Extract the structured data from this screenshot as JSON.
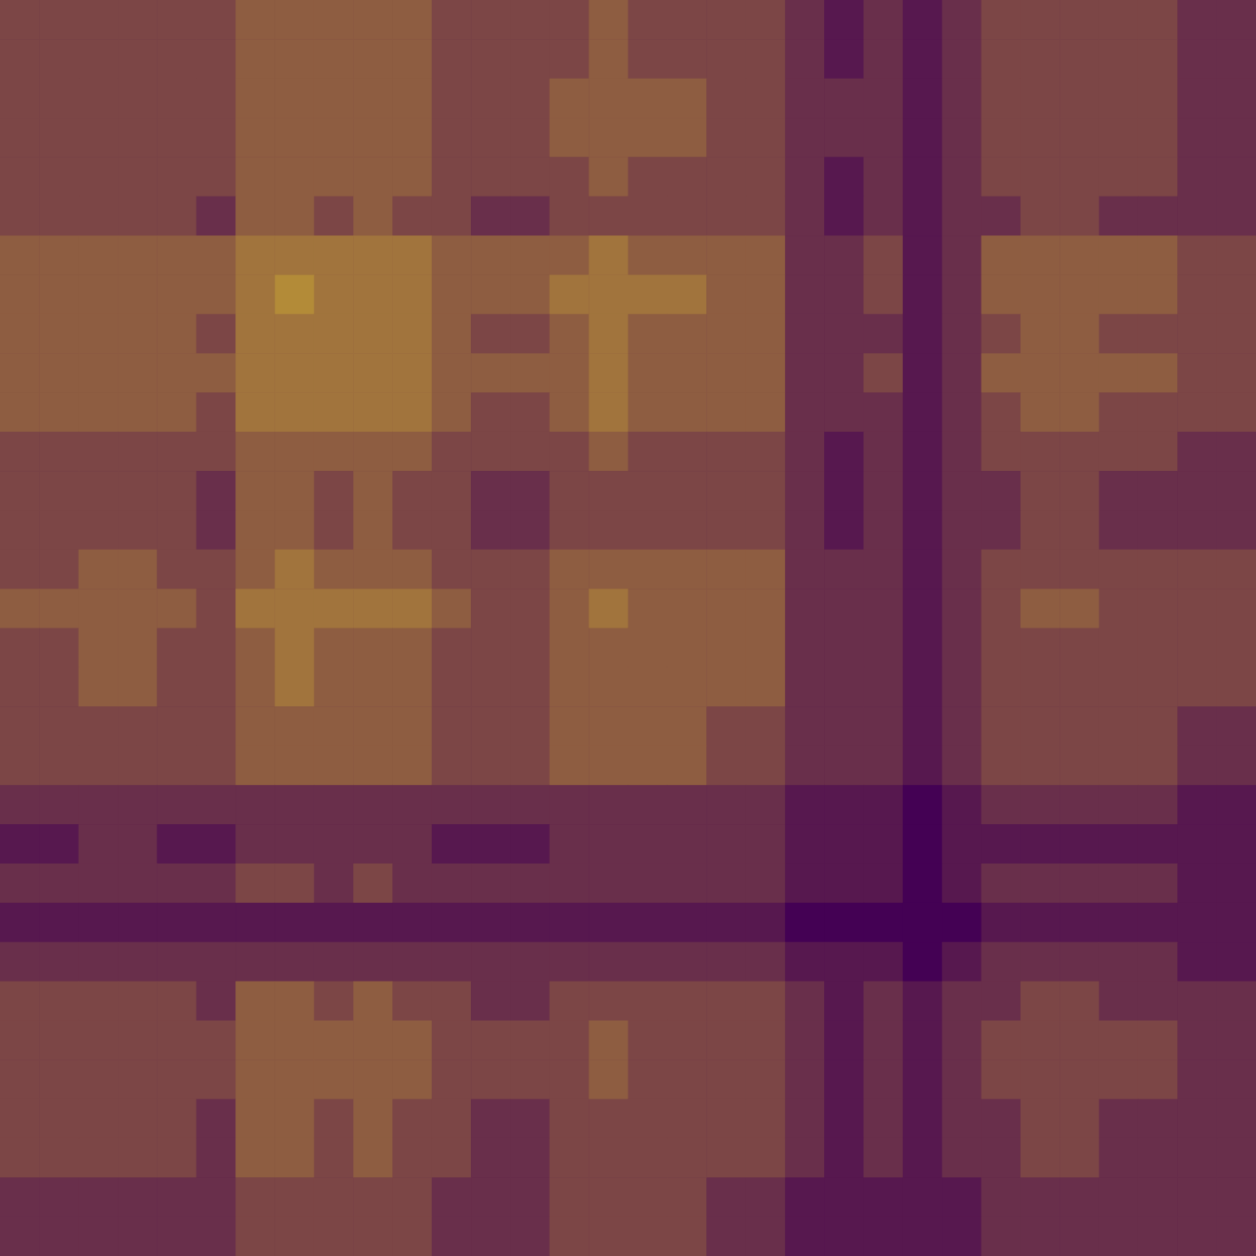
{
  "chart_data": {
    "type": "heatmap",
    "tick_labels": false,
    "zlim": [
      0,
      1
    ],
    "colors": [
      "#440154",
      "#fde725"
    ],
    "z": [
      [
        0.3,
        0.3,
        0.3,
        0.3,
        0.3,
        0.3,
        0.4,
        0.4,
        0.4,
        0.4,
        0.4,
        0.3,
        0.3,
        0.3,
        0.3,
        0.4,
        0.3,
        0.3,
        0.3,
        0.3,
        0.2,
        0.1,
        0.2,
        0.1,
        0.2,
        0.3,
        0.3,
        0.3,
        0.3,
        0.3,
        0.2,
        0.2
      ],
      [
        0.3,
        0.3,
        0.3,
        0.3,
        0.3,
        0.3,
        0.4,
        0.4,
        0.4,
        0.4,
        0.4,
        0.3,
        0.3,
        0.3,
        0.3,
        0.4,
        0.3,
        0.3,
        0.3,
        0.3,
        0.2,
        0.1,
        0.2,
        0.1,
        0.2,
        0.3,
        0.3,
        0.3,
        0.3,
        0.3,
        0.2,
        0.2
      ],
      [
        0.3,
        0.3,
        0.3,
        0.3,
        0.3,
        0.3,
        0.4,
        0.4,
        0.4,
        0.4,
        0.4,
        0.3,
        0.3,
        0.3,
        0.4,
        0.4,
        0.4,
        0.4,
        0.3,
        0.3,
        0.2,
        0.2,
        0.2,
        0.1,
        0.2,
        0.3,
        0.3,
        0.3,
        0.3,
        0.3,
        0.2,
        0.2
      ],
      [
        0.3,
        0.3,
        0.3,
        0.3,
        0.3,
        0.3,
        0.4,
        0.4,
        0.4,
        0.4,
        0.4,
        0.3,
        0.3,
        0.3,
        0.4,
        0.4,
        0.4,
        0.4,
        0.3,
        0.3,
        0.2,
        0.2,
        0.2,
        0.1,
        0.2,
        0.3,
        0.3,
        0.3,
        0.3,
        0.3,
        0.2,
        0.2
      ],
      [
        0.3,
        0.3,
        0.3,
        0.3,
        0.3,
        0.3,
        0.4,
        0.4,
        0.4,
        0.4,
        0.4,
        0.3,
        0.3,
        0.3,
        0.3,
        0.4,
        0.3,
        0.3,
        0.3,
        0.3,
        0.2,
        0.1,
        0.2,
        0.1,
        0.2,
        0.3,
        0.3,
        0.3,
        0.3,
        0.3,
        0.2,
        0.2
      ],
      [
        0.3,
        0.3,
        0.3,
        0.3,
        0.3,
        0.2,
        0.4,
        0.4,
        0.3,
        0.4,
        0.3,
        0.3,
        0.2,
        0.2,
        0.3,
        0.3,
        0.3,
        0.3,
        0.3,
        0.3,
        0.2,
        0.1,
        0.2,
        0.1,
        0.2,
        0.2,
        0.3,
        0.3,
        0.2,
        0.2,
        0.2,
        0.2
      ],
      [
        0.4,
        0.4,
        0.4,
        0.4,
        0.4,
        0.4,
        0.5,
        0.5,
        0.5,
        0.5,
        0.5,
        0.4,
        0.4,
        0.4,
        0.4,
        0.5,
        0.4,
        0.4,
        0.4,
        0.4,
        0.2,
        0.2,
        0.3,
        0.1,
        0.2,
        0.4,
        0.4,
        0.4,
        0.4,
        0.4,
        0.3,
        0.3
      ],
      [
        0.4,
        0.4,
        0.4,
        0.4,
        0.4,
        0.4,
        0.5,
        0.6,
        0.5,
        0.5,
        0.5,
        0.4,
        0.4,
        0.4,
        0.5,
        0.5,
        0.5,
        0.5,
        0.4,
        0.4,
        0.2,
        0.2,
        0.3,
        0.1,
        0.2,
        0.4,
        0.4,
        0.4,
        0.4,
        0.4,
        0.3,
        0.3
      ],
      [
        0.4,
        0.4,
        0.4,
        0.4,
        0.4,
        0.3,
        0.5,
        0.5,
        0.5,
        0.5,
        0.5,
        0.4,
        0.3,
        0.3,
        0.4,
        0.5,
        0.4,
        0.4,
        0.4,
        0.4,
        0.2,
        0.2,
        0.2,
        0.1,
        0.2,
        0.3,
        0.4,
        0.4,
        0.3,
        0.3,
        0.3,
        0.3
      ],
      [
        0.4,
        0.4,
        0.4,
        0.4,
        0.4,
        0.4,
        0.5,
        0.5,
        0.5,
        0.5,
        0.5,
        0.4,
        0.4,
        0.4,
        0.4,
        0.5,
        0.4,
        0.4,
        0.4,
        0.4,
        0.2,
        0.2,
        0.3,
        0.1,
        0.2,
        0.4,
        0.4,
        0.4,
        0.4,
        0.4,
        0.3,
        0.3
      ],
      [
        0.4,
        0.4,
        0.4,
        0.4,
        0.4,
        0.3,
        0.5,
        0.5,
        0.5,
        0.5,
        0.5,
        0.4,
        0.3,
        0.3,
        0.4,
        0.5,
        0.4,
        0.4,
        0.4,
        0.4,
        0.2,
        0.2,
        0.2,
        0.1,
        0.2,
        0.3,
        0.4,
        0.4,
        0.3,
        0.3,
        0.3,
        0.3
      ],
      [
        0.3,
        0.3,
        0.3,
        0.3,
        0.3,
        0.3,
        0.4,
        0.4,
        0.4,
        0.4,
        0.4,
        0.3,
        0.3,
        0.3,
        0.3,
        0.4,
        0.3,
        0.3,
        0.3,
        0.3,
        0.2,
        0.1,
        0.2,
        0.1,
        0.2,
        0.3,
        0.3,
        0.3,
        0.3,
        0.3,
        0.2,
        0.2
      ],
      [
        0.3,
        0.3,
        0.3,
        0.3,
        0.3,
        0.2,
        0.4,
        0.4,
        0.3,
        0.4,
        0.3,
        0.3,
        0.2,
        0.2,
        0.3,
        0.3,
        0.3,
        0.3,
        0.3,
        0.3,
        0.2,
        0.1,
        0.2,
        0.1,
        0.2,
        0.2,
        0.3,
        0.3,
        0.2,
        0.2,
        0.2,
        0.2
      ],
      [
        0.3,
        0.3,
        0.3,
        0.3,
        0.3,
        0.2,
        0.4,
        0.4,
        0.3,
        0.4,
        0.3,
        0.3,
        0.2,
        0.2,
        0.3,
        0.3,
        0.3,
        0.3,
        0.3,
        0.3,
        0.2,
        0.1,
        0.2,
        0.1,
        0.2,
        0.2,
        0.3,
        0.3,
        0.2,
        0.2,
        0.2,
        0.2
      ],
      [
        0.3,
        0.3,
        0.4,
        0.4,
        0.3,
        0.3,
        0.4,
        0.5,
        0.4,
        0.4,
        0.4,
        0.3,
        0.3,
        0.3,
        0.4,
        0.4,
        0.4,
        0.4,
        0.4,
        0.4,
        0.2,
        0.2,
        0.2,
        0.1,
        0.2,
        0.3,
        0.3,
        0.3,
        0.3,
        0.3,
        0.3,
        0.3
      ],
      [
        0.4,
        0.4,
        0.4,
        0.4,
        0.4,
        0.3,
        0.5,
        0.5,
        0.5,
        0.5,
        0.5,
        0.4,
        0.3,
        0.3,
        0.4,
        0.5,
        0.4,
        0.4,
        0.4,
        0.4,
        0.2,
        0.2,
        0.2,
        0.1,
        0.2,
        0.3,
        0.4,
        0.4,
        0.3,
        0.3,
        0.3,
        0.3
      ],
      [
        0.3,
        0.3,
        0.4,
        0.4,
        0.3,
        0.3,
        0.4,
        0.5,
        0.4,
        0.4,
        0.4,
        0.3,
        0.3,
        0.3,
        0.4,
        0.4,
        0.4,
        0.4,
        0.4,
        0.4,
        0.2,
        0.2,
        0.2,
        0.1,
        0.2,
        0.3,
        0.3,
        0.3,
        0.3,
        0.3,
        0.3,
        0.3
      ],
      [
        0.3,
        0.3,
        0.4,
        0.4,
        0.3,
        0.3,
        0.4,
        0.5,
        0.4,
        0.4,
        0.4,
        0.3,
        0.3,
        0.3,
        0.4,
        0.4,
        0.4,
        0.4,
        0.4,
        0.4,
        0.2,
        0.2,
        0.2,
        0.1,
        0.2,
        0.3,
        0.3,
        0.3,
        0.3,
        0.3,
        0.3,
        0.3
      ],
      [
        0.3,
        0.3,
        0.3,
        0.3,
        0.3,
        0.3,
        0.4,
        0.4,
        0.4,
        0.4,
        0.4,
        0.3,
        0.3,
        0.3,
        0.4,
        0.4,
        0.4,
        0.4,
        0.3,
        0.3,
        0.2,
        0.2,
        0.2,
        0.1,
        0.2,
        0.3,
        0.3,
        0.3,
        0.3,
        0.3,
        0.2,
        0.2
      ],
      [
        0.3,
        0.3,
        0.3,
        0.3,
        0.3,
        0.3,
        0.4,
        0.4,
        0.4,
        0.4,
        0.4,
        0.3,
        0.3,
        0.3,
        0.4,
        0.4,
        0.4,
        0.4,
        0.3,
        0.3,
        0.2,
        0.2,
        0.2,
        0.1,
        0.2,
        0.3,
        0.3,
        0.3,
        0.3,
        0.3,
        0.2,
        0.2
      ],
      [
        0.2,
        0.2,
        0.2,
        0.2,
        0.2,
        0.2,
        0.2,
        0.2,
        0.2,
        0.2,
        0.2,
        0.2,
        0.2,
        0.2,
        0.2,
        0.2,
        0.2,
        0.2,
        0.2,
        0.2,
        0.1,
        0.1,
        0.1,
        0.0,
        0.1,
        0.2,
        0.2,
        0.2,
        0.2,
        0.2,
        0.1,
        0.1
      ],
      [
        0.1,
        0.1,
        0.2,
        0.2,
        0.1,
        0.1,
        0.2,
        0.2,
        0.2,
        0.2,
        0.2,
        0.1,
        0.1,
        0.1,
        0.2,
        0.2,
        0.2,
        0.2,
        0.2,
        0.2,
        0.1,
        0.1,
        0.1,
        0.0,
        0.1,
        0.1,
        0.1,
        0.1,
        0.1,
        0.1,
        0.1,
        0.1
      ],
      [
        0.2,
        0.2,
        0.2,
        0.2,
        0.2,
        0.2,
        0.3,
        0.3,
        0.2,
        0.3,
        0.2,
        0.2,
        0.2,
        0.2,
        0.2,
        0.2,
        0.2,
        0.2,
        0.2,
        0.2,
        0.1,
        0.1,
        0.1,
        0.0,
        0.1,
        0.2,
        0.2,
        0.2,
        0.2,
        0.2,
        0.1,
        0.1
      ],
      [
        0.1,
        0.1,
        0.1,
        0.1,
        0.1,
        0.1,
        0.1,
        0.1,
        0.1,
        0.1,
        0.1,
        0.1,
        0.1,
        0.1,
        0.1,
        0.1,
        0.1,
        0.1,
        0.1,
        0.1,
        0.0,
        0.0,
        0.0,
        0.0,
        0.0,
        0.1,
        0.1,
        0.1,
        0.1,
        0.1,
        0.1,
        0.1
      ],
      [
        0.2,
        0.2,
        0.2,
        0.2,
        0.2,
        0.2,
        0.2,
        0.2,
        0.2,
        0.2,
        0.2,
        0.2,
        0.2,
        0.2,
        0.2,
        0.2,
        0.2,
        0.2,
        0.2,
        0.2,
        0.1,
        0.1,
        0.1,
        0.0,
        0.1,
        0.2,
        0.2,
        0.2,
        0.2,
        0.2,
        0.1,
        0.1
      ],
      [
        0.3,
        0.3,
        0.3,
        0.3,
        0.3,
        0.2,
        0.4,
        0.4,
        0.3,
        0.4,
        0.3,
        0.3,
        0.2,
        0.2,
        0.3,
        0.3,
        0.3,
        0.3,
        0.3,
        0.3,
        0.2,
        0.1,
        0.2,
        0.1,
        0.2,
        0.2,
        0.3,
        0.3,
        0.2,
        0.2,
        0.2,
        0.2
      ],
      [
        0.3,
        0.3,
        0.3,
        0.3,
        0.3,
        0.3,
        0.4,
        0.4,
        0.4,
        0.4,
        0.4,
        0.3,
        0.3,
        0.3,
        0.3,
        0.4,
        0.3,
        0.3,
        0.3,
        0.3,
        0.2,
        0.1,
        0.2,
        0.1,
        0.2,
        0.3,
        0.3,
        0.3,
        0.3,
        0.3,
        0.2,
        0.2
      ],
      [
        0.3,
        0.3,
        0.3,
        0.3,
        0.3,
        0.3,
        0.4,
        0.4,
        0.4,
        0.4,
        0.4,
        0.3,
        0.3,
        0.3,
        0.3,
        0.4,
        0.3,
        0.3,
        0.3,
        0.3,
        0.2,
        0.1,
        0.2,
        0.1,
        0.2,
        0.3,
        0.3,
        0.3,
        0.3,
        0.3,
        0.2,
        0.2
      ],
      [
        0.3,
        0.3,
        0.3,
        0.3,
        0.3,
        0.2,
        0.4,
        0.4,
        0.3,
        0.4,
        0.3,
        0.3,
        0.2,
        0.2,
        0.3,
        0.3,
        0.3,
        0.3,
        0.3,
        0.3,
        0.2,
        0.1,
        0.2,
        0.1,
        0.2,
        0.2,
        0.3,
        0.3,
        0.2,
        0.2,
        0.2,
        0.2
      ],
      [
        0.3,
        0.3,
        0.3,
        0.3,
        0.3,
        0.2,
        0.4,
        0.4,
        0.3,
        0.4,
        0.3,
        0.3,
        0.2,
        0.2,
        0.3,
        0.3,
        0.3,
        0.3,
        0.3,
        0.3,
        0.2,
        0.1,
        0.2,
        0.1,
        0.2,
        0.2,
        0.3,
        0.3,
        0.2,
        0.2,
        0.2,
        0.2
      ],
      [
        0.2,
        0.2,
        0.2,
        0.2,
        0.2,
        0.2,
        0.3,
        0.3,
        0.3,
        0.3,
        0.3,
        0.2,
        0.2,
        0.2,
        0.3,
        0.3,
        0.3,
        0.3,
        0.2,
        0.2,
        0.1,
        0.1,
        0.1,
        0.1,
        0.1,
        0.2,
        0.2,
        0.2,
        0.2,
        0.2,
        0.2,
        0.2
      ],
      [
        0.2,
        0.2,
        0.2,
        0.2,
        0.2,
        0.2,
        0.3,
        0.3,
        0.3,
        0.3,
        0.3,
        0.2,
        0.2,
        0.2,
        0.3,
        0.3,
        0.3,
        0.3,
        0.2,
        0.2,
        0.1,
        0.1,
        0.1,
        0.1,
        0.1,
        0.2,
        0.2,
        0.2,
        0.2,
        0.2,
        0.2,
        0.2
      ]
    ]
  }
}
